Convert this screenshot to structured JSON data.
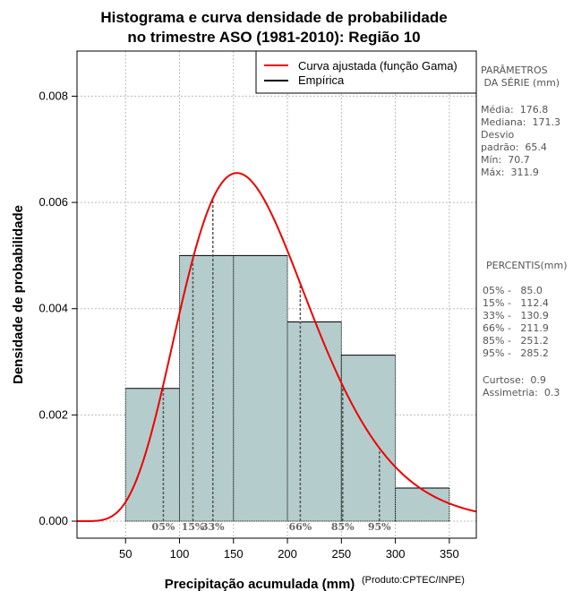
{
  "chart_data": {
    "type": "bar",
    "title_line1": "Histograma e curva densidade de probabilidade",
    "title_line2": "no trimestre ASO (1981-2010): Região 10",
    "xlabel": "Precipitação acumulada (mm)",
    "ylabel": "Densidade de probabilidade",
    "credit": "(Produto:CPTEC/INPE)",
    "xlim": [
      5,
      375
    ],
    "ylim": [
      -0.00032,
      0.00885
    ],
    "x_ticks": [
      50,
      100,
      150,
      200,
      250,
      300,
      350
    ],
    "y_ticks": [
      {
        "value": 0.0,
        "label": "0.000"
      },
      {
        "value": 0.002,
        "label": "0.002"
      },
      {
        "value": 0.004,
        "label": "0.004"
      },
      {
        "value": 0.006,
        "label": "0.006"
      },
      {
        "value": 0.008,
        "label": "0.008"
      }
    ],
    "grid": true,
    "bins": [
      {
        "start": 50,
        "end": 100,
        "density": 0.0025
      },
      {
        "start": 100,
        "end": 150,
        "density": 0.005
      },
      {
        "start": 150,
        "end": 200,
        "density": 0.005
      },
      {
        "start": 200,
        "end": 250,
        "density": 0.00375
      },
      {
        "start": 250,
        "end": 300,
        "density": 0.003125
      },
      {
        "start": 300,
        "end": 350,
        "density": 0.000625
      }
    ],
    "gamma_fit": {
      "shape": 7.5,
      "scale": 23.57
    },
    "percentile_lines": [
      {
        "label": "05%",
        "value": 85.0
      },
      {
        "label": "15%",
        "value": 112.4
      },
      {
        "label": "33%",
        "value": 130.9
      },
      {
        "label": "66%",
        "value": 211.9
      },
      {
        "label": "85%",
        "value": 251.2
      },
      {
        "label": "95%",
        "value": 285.2
      }
    ],
    "legend": [
      {
        "label": "Curva ajustada (função Gama)",
        "color": "#ee0000"
      },
      {
        "label": "Empírica",
        "color": "#000000"
      }
    ],
    "legend_position": "top-right"
  },
  "side_panel": {
    "params_lines": [
      "PARÂMETROS",
      " DA SÉRIE (mm)"
    ],
    "stats_lines": [
      "Média:  176.8",
      "Mediana:  171.3",
      "Desvio",
      "padrão:  65.4",
      "Mín:  70.7",
      "Máx:  311.9"
    ],
    "percentis_title": "PERCENTIS(mm)",
    "percentis_lines": [
      "05% -   85.0",
      "15% -   112.4",
      "33% -   130.9",
      "66% -   211.9",
      "85% -   251.2",
      "95% -   285.2"
    ],
    "extra_lines": [
      "Curtose:  0.9",
      "Assimetria:  0.3"
    ]
  },
  "colors": {
    "bar_fill": "#b4cccc",
    "curve": "#ee0000",
    "grid": "#bbbbbb"
  }
}
